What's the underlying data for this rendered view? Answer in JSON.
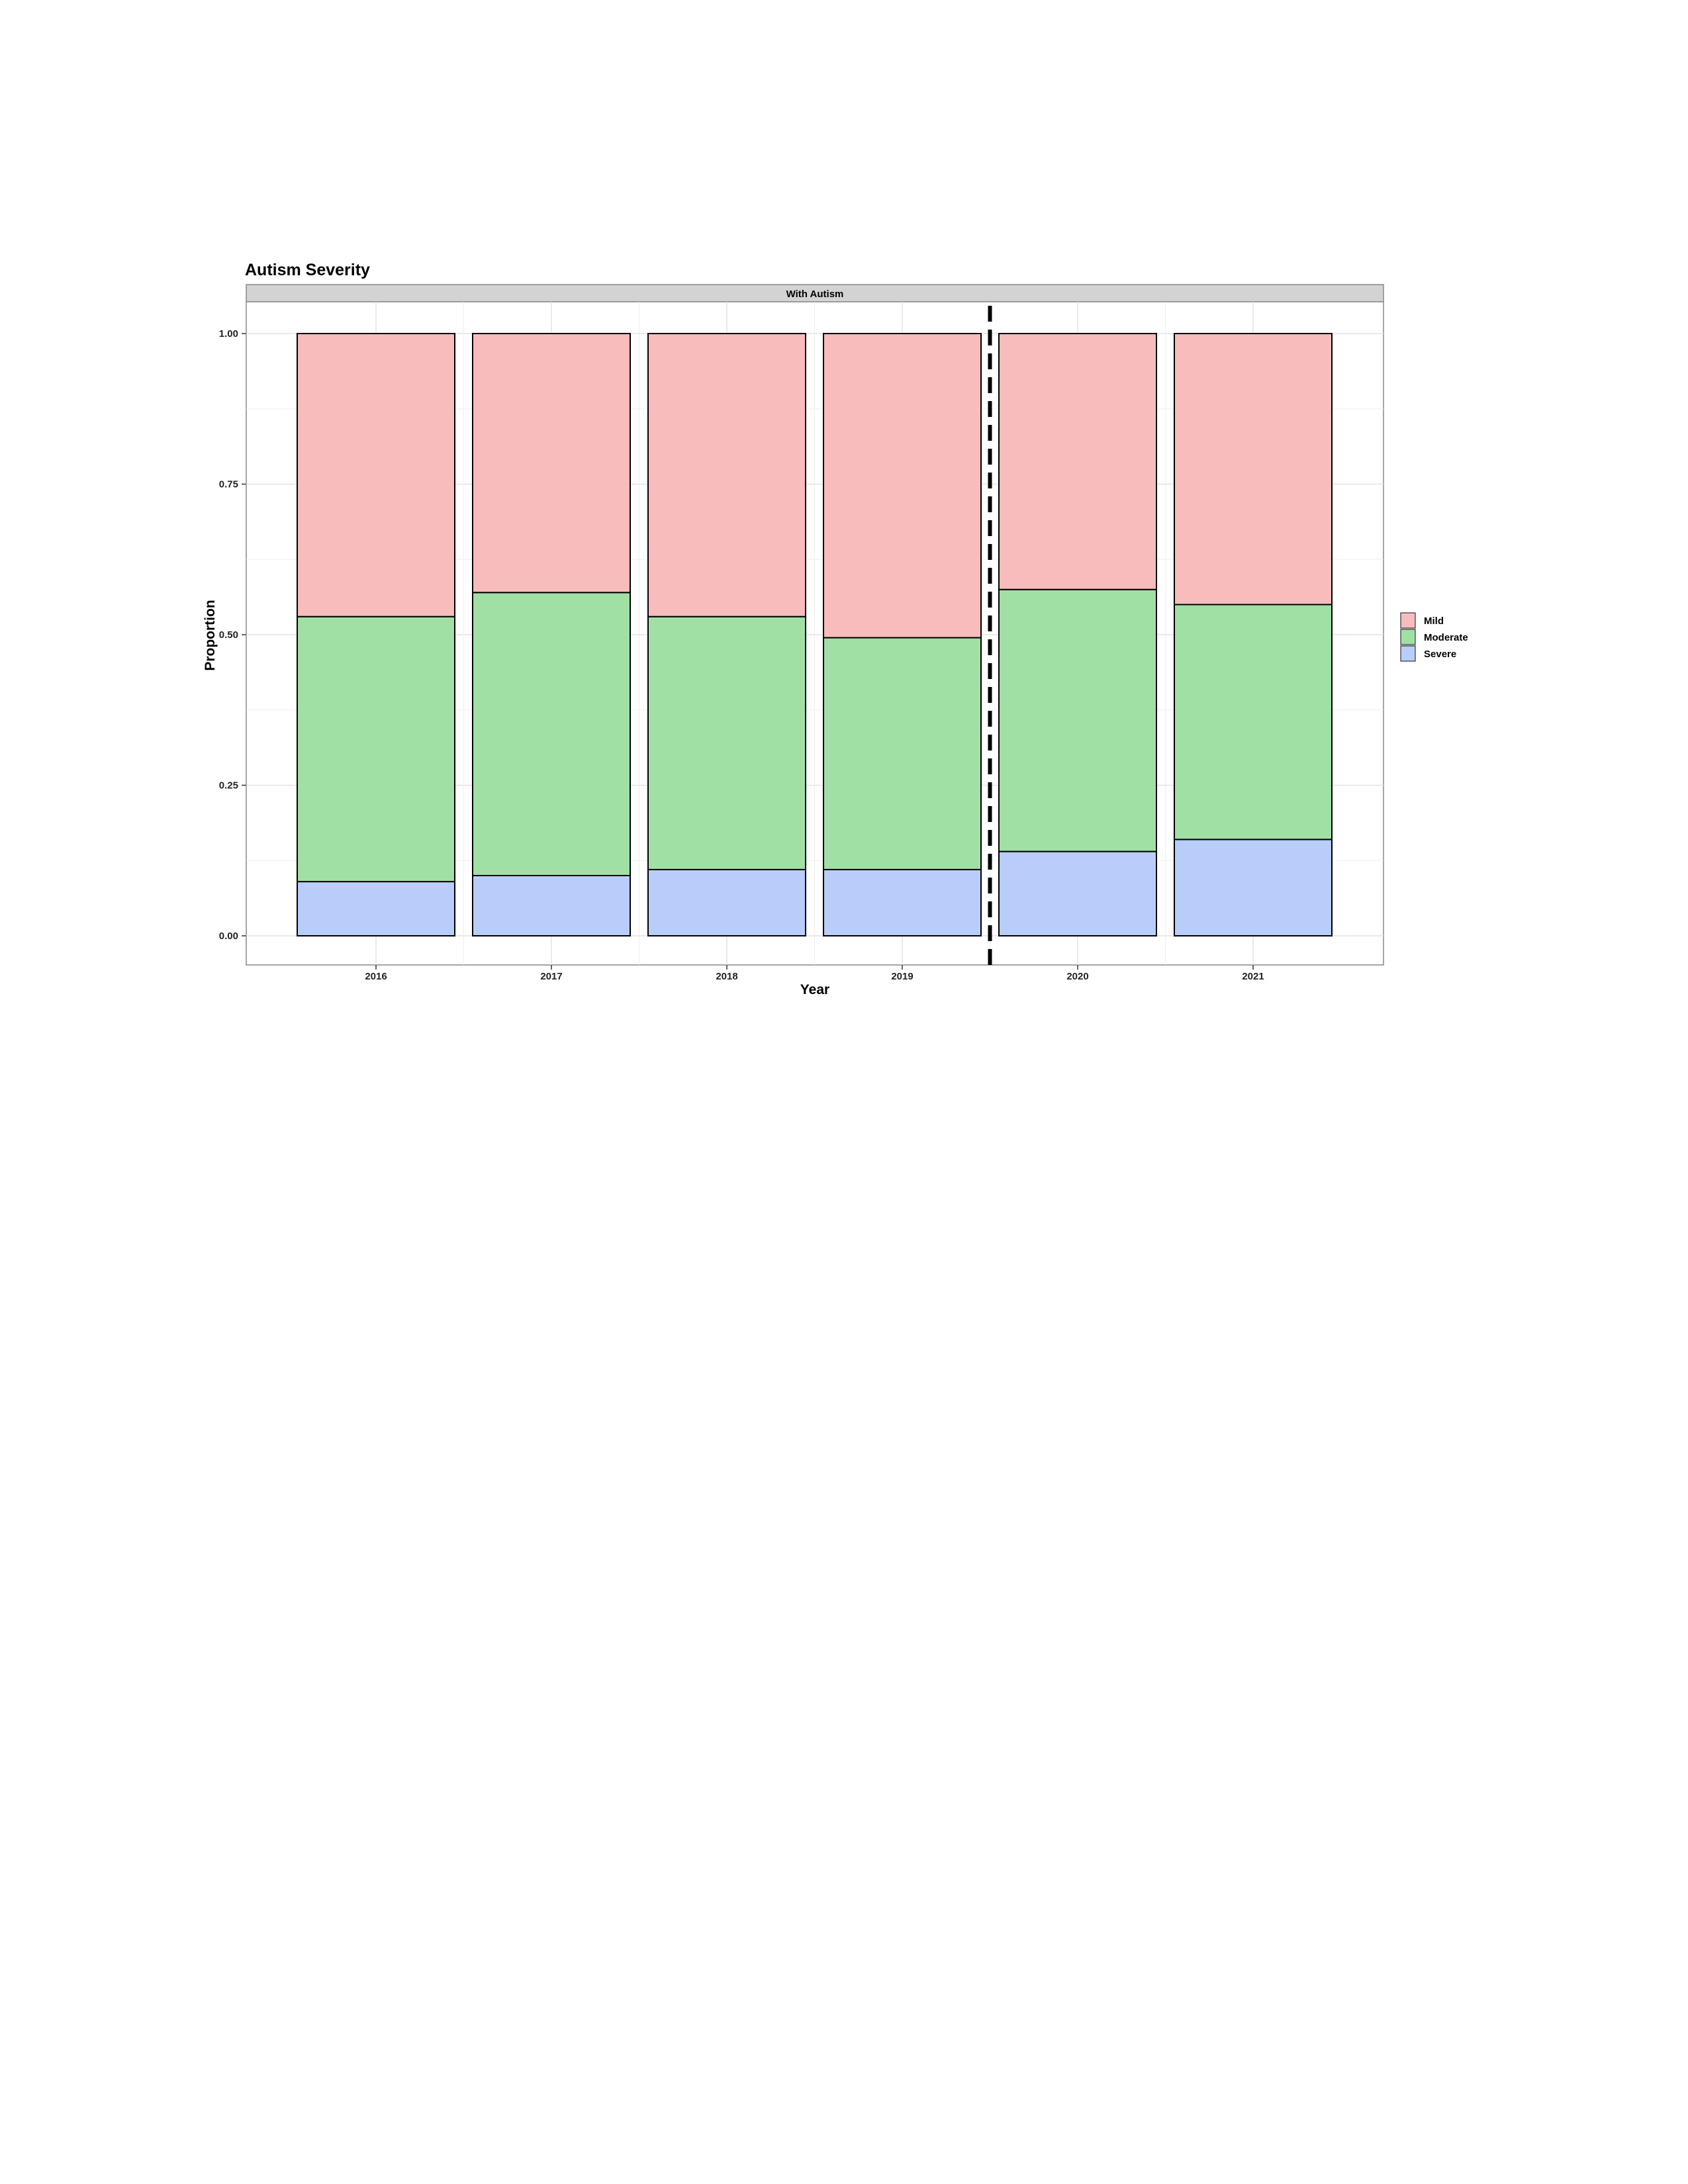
{
  "chart_data": {
    "type": "bar",
    "stacked": true,
    "title": "Autism Severity",
    "facet_label": "With Autism",
    "xlabel": "Year",
    "ylabel": "Proportion",
    "categories": [
      "2016",
      "2017",
      "2018",
      "2019",
      "2020",
      "2021"
    ],
    "ylim": [
      0,
      1
    ],
    "yticks": [
      "0.00",
      "0.25",
      "0.50",
      "0.75",
      "1.00"
    ],
    "series": [
      {
        "name": "Severe",
        "color": "#b9cdfb",
        "values": [
          0.09,
          0.1,
          0.11,
          0.11,
          0.14,
          0.16
        ]
      },
      {
        "name": "Moderate",
        "color": "#a1e0a5",
        "values": [
          0.44,
          0.47,
          0.42,
          0.385,
          0.435,
          0.39
        ]
      },
      {
        "name": "Mild",
        "color": "#f8bcbc",
        "values": [
          0.47,
          0.43,
          0.47,
          0.505,
          0.425,
          0.45
        ]
      }
    ],
    "legend_order": [
      "Mild",
      "Moderate",
      "Severe"
    ],
    "legend_position": "right",
    "grid": true,
    "reference_line": {
      "style": "dashed",
      "between": [
        "2019",
        "2020"
      ]
    }
  }
}
